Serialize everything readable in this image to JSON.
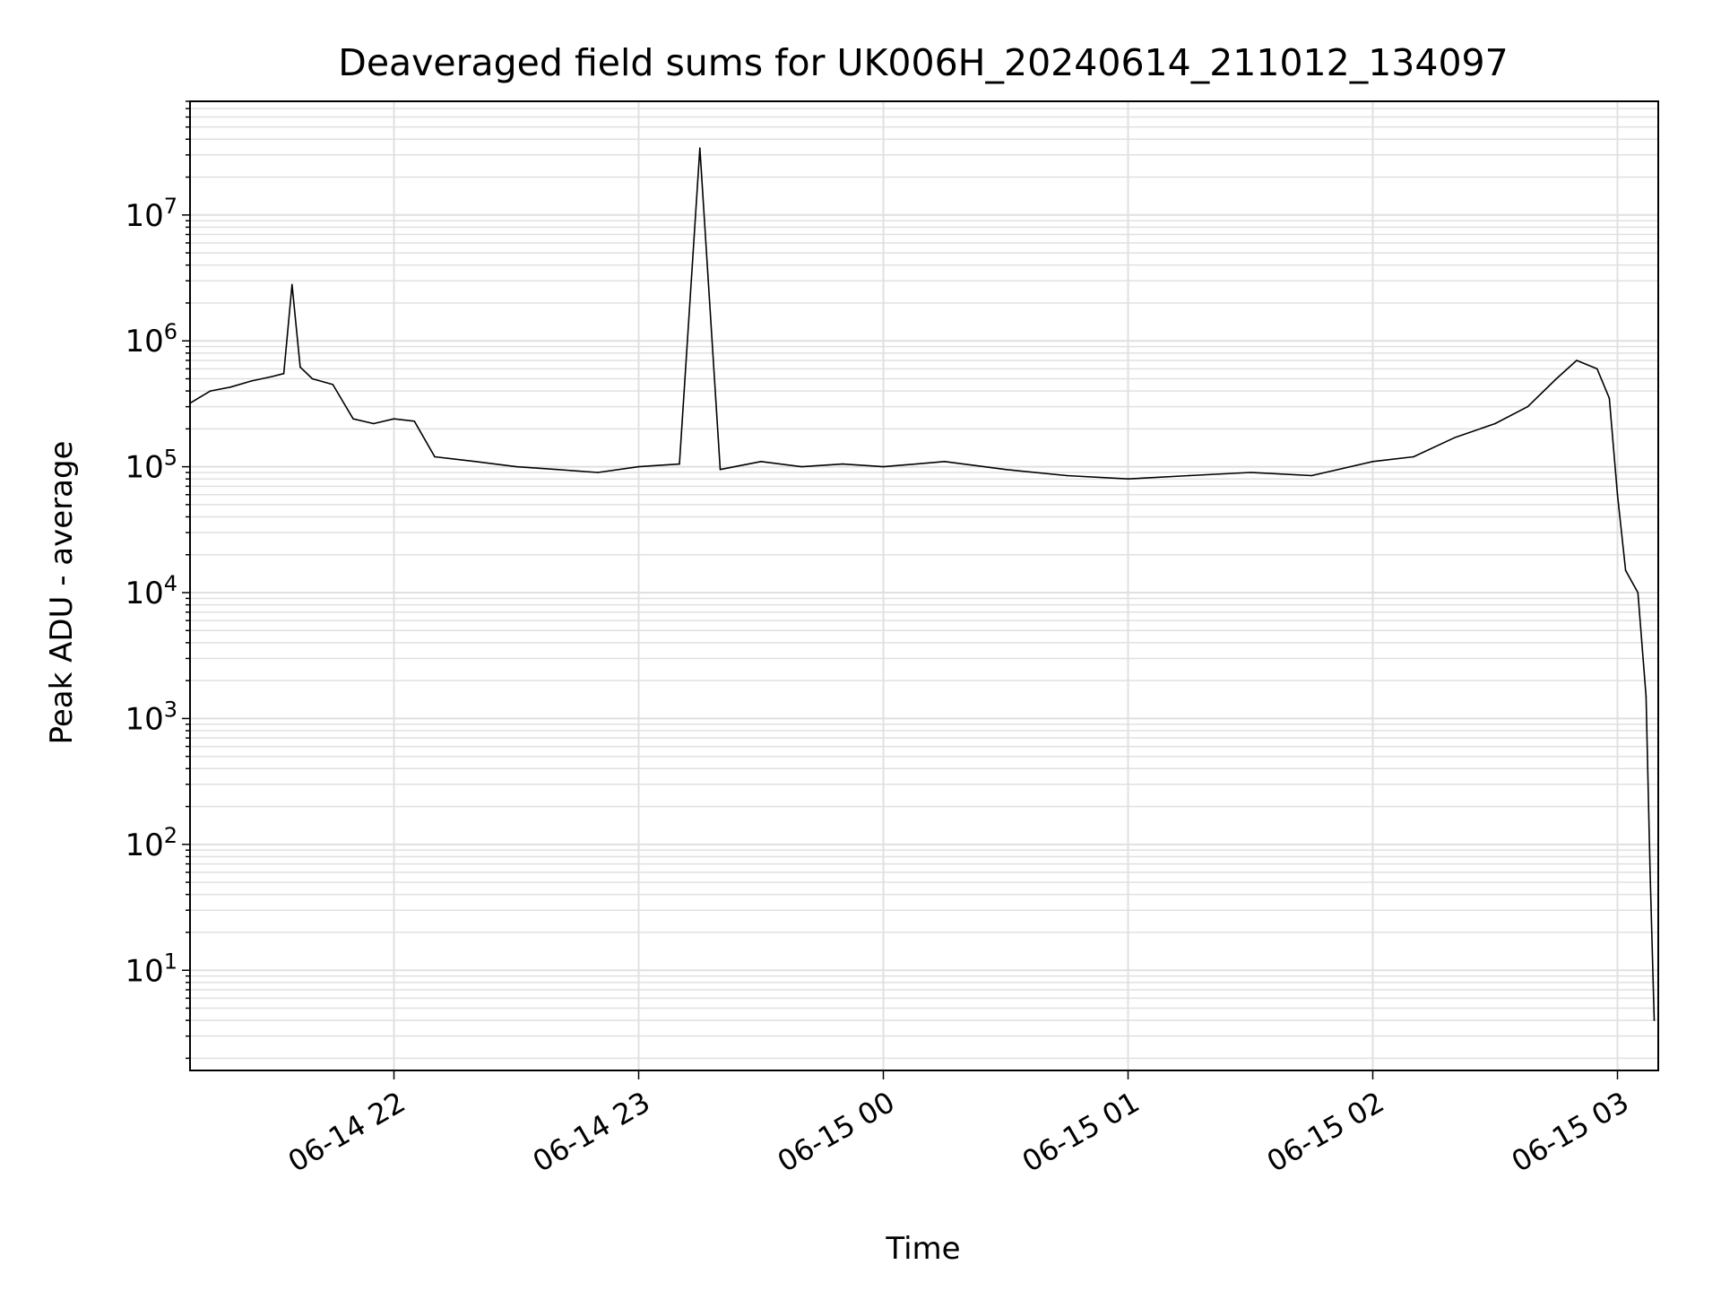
{
  "chart_data": {
    "type": "line",
    "title": "Deaveraged field sums for UK006H_20240614_211012_134097",
    "xlabel": "Time",
    "ylabel": "Peak ADU - average",
    "yscale": "log",
    "ylim": [
      1.6,
      80000000
    ],
    "xlim": [
      "2024-06-14 21:10:12",
      "2024-06-15 03:10:00"
    ],
    "grid": true,
    "line_color": "#000000",
    "grid_color": "#e0e0e0",
    "x_ticks": [
      {
        "value": "2024-06-14 22:00",
        "label": "06-14 22"
      },
      {
        "value": "2024-06-14 23:00",
        "label": "06-14 23"
      },
      {
        "value": "2024-06-15 00:00",
        "label": "06-15 00"
      },
      {
        "value": "2024-06-15 01:00",
        "label": "06-15 01"
      },
      {
        "value": "2024-06-15 02:00",
        "label": "06-15 02"
      },
      {
        "value": "2024-06-15 03:00",
        "label": "06-15 03"
      }
    ],
    "y_ticks": [
      {
        "value": 10,
        "base": "10",
        "exp": "1"
      },
      {
        "value": 100,
        "base": "10",
        "exp": "2"
      },
      {
        "value": 1000,
        "base": "10",
        "exp": "3"
      },
      {
        "value": 10000,
        "base": "10",
        "exp": "4"
      },
      {
        "value": 100000,
        "base": "10",
        "exp": "5"
      },
      {
        "value": 1000000,
        "base": "10",
        "exp": "6"
      },
      {
        "value": 10000000,
        "base": "10",
        "exp": "7"
      }
    ],
    "series": [
      {
        "x": [
          "2024-06-14 21:10",
          "2024-06-14 21:15",
          "2024-06-14 21:20",
          "2024-06-14 21:25",
          "2024-06-14 21:30",
          "2024-06-14 21:33",
          "2024-06-14 21:35",
          "2024-06-14 21:37",
          "2024-06-14 21:40",
          "2024-06-14 21:45",
          "2024-06-14 21:50",
          "2024-06-14 21:55",
          "2024-06-14 22:00",
          "2024-06-14 22:05",
          "2024-06-14 22:10",
          "2024-06-14 22:20",
          "2024-06-14 22:30",
          "2024-06-14 22:40",
          "2024-06-14 22:50",
          "2024-06-14 23:00",
          "2024-06-14 23:10",
          "2024-06-14 23:15",
          "2024-06-14 23:20",
          "2024-06-14 23:30",
          "2024-06-14 23:40",
          "2024-06-14 23:50",
          "2024-06-15 00:00",
          "2024-06-15 00:15",
          "2024-06-15 00:30",
          "2024-06-15 00:45",
          "2024-06-15 01:00",
          "2024-06-15 01:15",
          "2024-06-15 01:30",
          "2024-06-15 01:45",
          "2024-06-15 02:00",
          "2024-06-15 02:10",
          "2024-06-15 02:20",
          "2024-06-15 02:30",
          "2024-06-15 02:38",
          "2024-06-15 02:45",
          "2024-06-15 02:50",
          "2024-06-15 02:55",
          "2024-06-15 02:58",
          "2024-06-15 03:00",
          "2024-06-15 03:02",
          "2024-06-15 03:05",
          "2024-06-15 03:07",
          "2024-06-15 03:08",
          "2024-06-15 03:09"
        ],
        "values": [
          320000,
          400000,
          430000,
          480000,
          520000,
          550000,
          2800000,
          620000,
          500000,
          450000,
          240000,
          220000,
          240000,
          230000,
          120000,
          110000,
          100000,
          95000,
          90000,
          100000,
          105000,
          34000000,
          95000,
          110000,
          100000,
          105000,
          100000,
          110000,
          95000,
          85000,
          80000,
          85000,
          90000,
          85000,
          110000,
          120000,
          170000,
          220000,
          300000,
          500000,
          700000,
          600000,
          350000,
          60000,
          15000,
          10000,
          1500,
          60,
          4
        ]
      }
    ]
  }
}
